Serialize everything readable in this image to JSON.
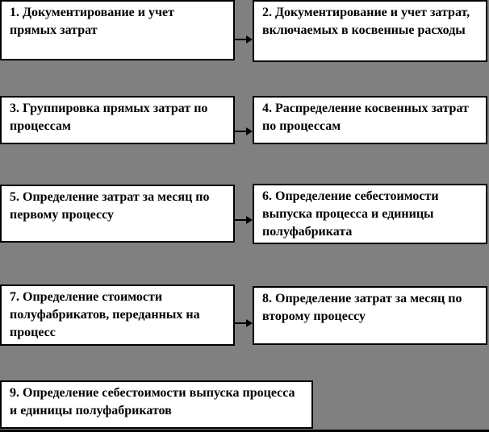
{
  "colors": {
    "background": "#808080",
    "box_fill": "#ffffff",
    "box_border": "#000000",
    "text": "#000000",
    "arrow": "#000000"
  },
  "flowchart": {
    "steps": [
      {
        "id": "1",
        "label": "1. Документирование и учет прямых затрат"
      },
      {
        "id": "2",
        "label": "2. Документирование и учет затрат, включаемых в косвенные расходы"
      },
      {
        "id": "3",
        "label": "3. Группировка прямых затрат по процессам"
      },
      {
        "id": "4",
        "label": "4. Распределение косвенных затрат по процессам"
      },
      {
        "id": "5",
        "label": "5. Определение затрат за месяц по первому процессу"
      },
      {
        "id": "6",
        "label": "6. Определение себестоимости выпуска процесса и единицы полуфабриката"
      },
      {
        "id": "7",
        "label": "7. Определение стоимости полуфабрикатов, переданных на процесс"
      },
      {
        "id": "8",
        "label": "8. Определение затрат за месяц по второму процессу"
      },
      {
        "id": "9",
        "label": "9. Определение себестоимости выпуска процесса и единицы полуфабрикатов"
      }
    ],
    "connections": [
      {
        "from": "1",
        "to": "2",
        "type": "arrow-right"
      },
      {
        "from": "3",
        "to": "4",
        "type": "arrow-right"
      },
      {
        "from": "5",
        "to": "6",
        "type": "arrow-right"
      },
      {
        "from": "7",
        "to": "8",
        "type": "arrow-right"
      }
    ]
  }
}
